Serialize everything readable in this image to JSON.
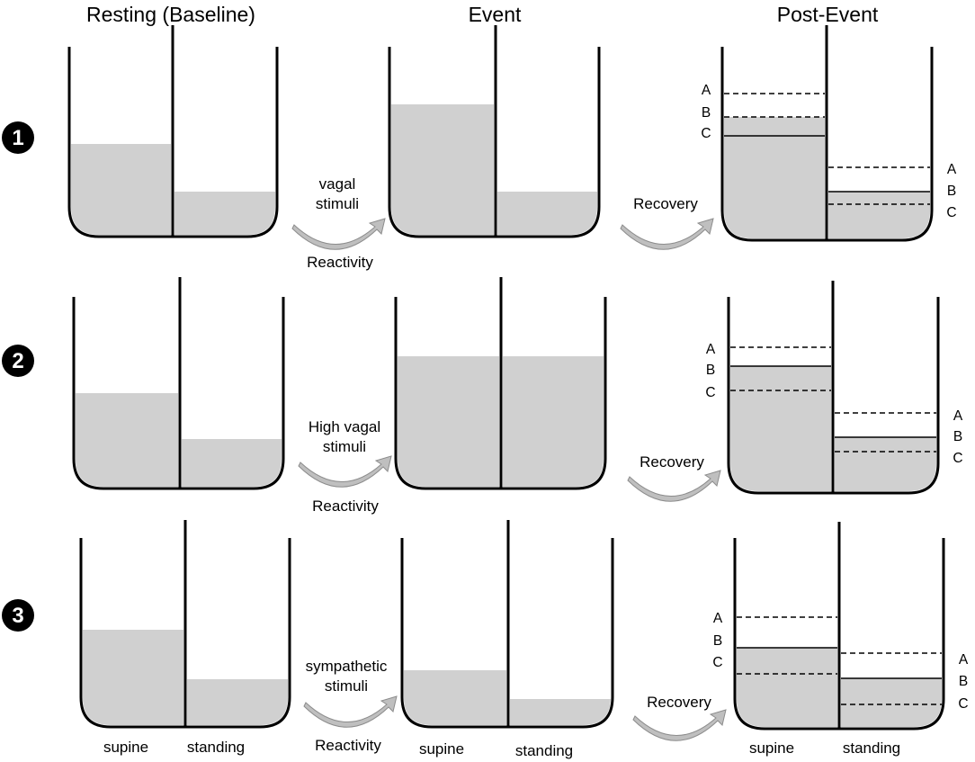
{
  "headers": {
    "resting": "Resting (Baseline)",
    "event": "Event",
    "post_event": "Post-Event"
  },
  "rows": [
    {
      "number": "1",
      "stimulus_line1": "vagal",
      "stimulus_line2": "stimuli",
      "reactivity": "Reactivity",
      "recovery": "Recovery"
    },
    {
      "number": "2",
      "stimulus_line1": "High vagal",
      "stimulus_line2": "stimuli",
      "reactivity": "Reactivity",
      "recovery": "Recovery"
    },
    {
      "number": "3",
      "stimulus_line1": "sympathetic",
      "stimulus_line2": "stimuli",
      "reactivity": "Reactivity",
      "recovery": "Recovery"
    }
  ],
  "level_labels": [
    "A",
    "B",
    "C"
  ],
  "compartments": {
    "supine": "supine",
    "standing": "standing"
  },
  "colors": {
    "fill": "#d0d0d0",
    "outline": "#000000",
    "arrow": "#bfbfbf"
  }
}
